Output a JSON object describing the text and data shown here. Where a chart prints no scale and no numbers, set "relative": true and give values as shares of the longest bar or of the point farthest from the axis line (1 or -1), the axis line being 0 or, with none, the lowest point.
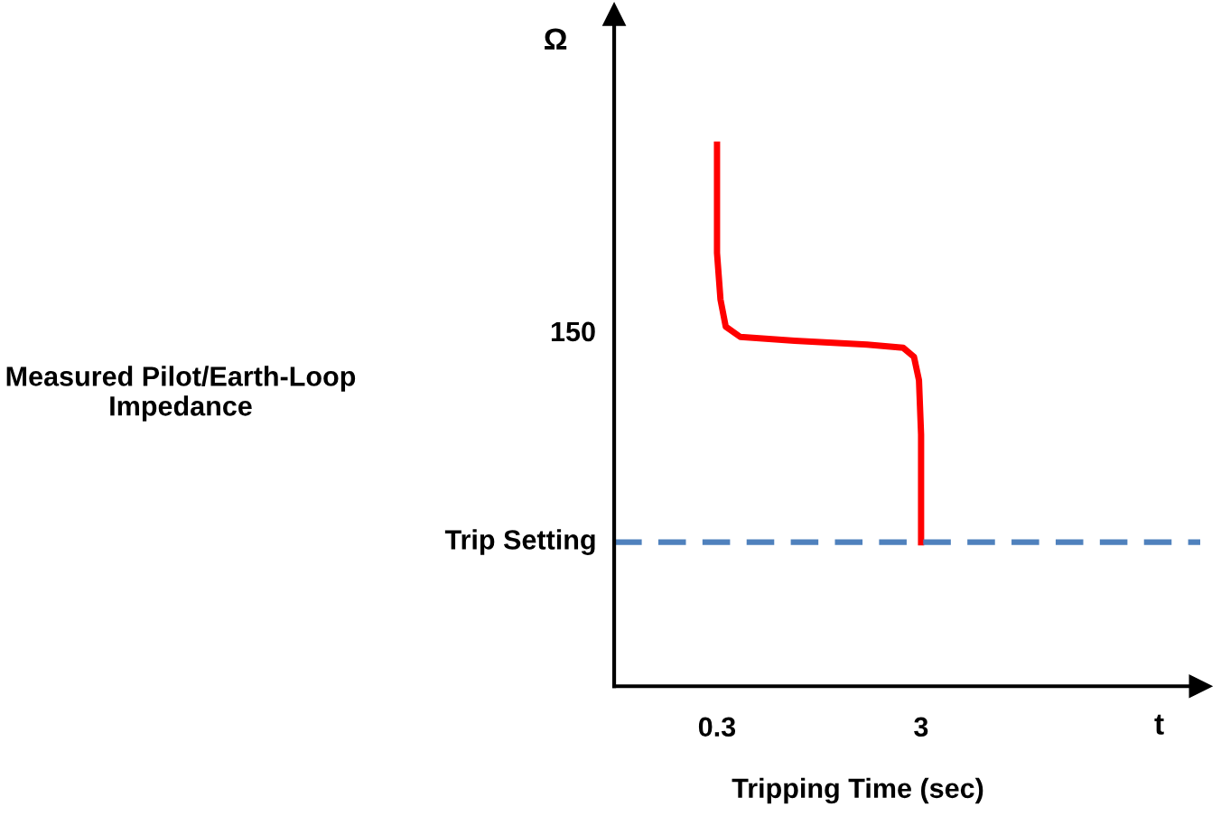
{
  "chart_data": {
    "type": "line",
    "relative": true,
    "ylabel": "Ω",
    "xlabel": "t",
    "annotations": [
      "Measured Pilot/Earth-Loop Impedance",
      "Tripping Time (sec)",
      "150"
    ],
    "log": "x",
    "xlim": [
      0.094,
      70
    ],
    "xticks": [
      0.3,
      3
    ],
    "x": [
      0.3,
      0.3,
      0.312,
      0.331,
      0.39,
      0.72,
      1.63,
      2.45,
      2.77,
      2.93,
      3,
      3,
      3
    ],
    "series": [
      {
        "color": "#ff0000",
        "values": [
          1,
          0.8,
          0.714,
          0.664,
          0.645,
          0.638,
          0.631,
          0.625,
          0.608,
          0.565,
          0.465,
          0.332,
          0.266
        ]
      }
    ],
    "ref_lines": [
      {
        "axis": "y",
        "value": 0.266,
        "label": "Trip Setting",
        "color": "#4f81bd",
        "line_style": "dashed"
      }
    ],
    "grid": false,
    "marker": "none",
    "line_style": "solid"
  }
}
